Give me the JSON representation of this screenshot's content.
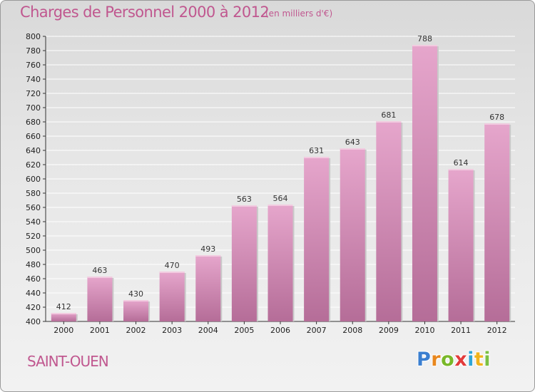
{
  "header": {
    "title": "Charges de Personnel 2000 à 2012",
    "subtitle": "(en milliers d'€)"
  },
  "footer": {
    "city": "SAINT-OUEN",
    "logo_letters": [
      "P",
      "r",
      "o",
      "x",
      "i",
      "t",
      "i"
    ],
    "logo_colors": [
      "#3b7fd0",
      "#e8871e",
      "#79b829",
      "#e23b3b",
      "#2fa6d8",
      "#f0b41e",
      "#7bc043"
    ]
  },
  "colors": {
    "title": "#c0578f",
    "bar_top": "#e6a6cc",
    "bar_bottom": "#b56d98",
    "grid": "#ffffff"
  },
  "chart_data": {
    "type": "bar",
    "title": "Charges de Personnel 2000 à 2012",
    "subtitle": "(en milliers d'€)",
    "categories": [
      "2000",
      "2001",
      "2002",
      "2003",
      "2004",
      "2005",
      "2006",
      "2007",
      "2008",
      "2009",
      "2010",
      "2011",
      "2012"
    ],
    "values": [
      412,
      463,
      430,
      470,
      493,
      563,
      564,
      631,
      643,
      681,
      788,
      614,
      678
    ],
    "ylim": [
      400,
      800
    ],
    "yticks": [
      400,
      420,
      440,
      460,
      480,
      500,
      520,
      540,
      560,
      580,
      600,
      620,
      640,
      660,
      680,
      700,
      720,
      740,
      760,
      780,
      800
    ],
    "grid": true,
    "data_labels": true
  }
}
